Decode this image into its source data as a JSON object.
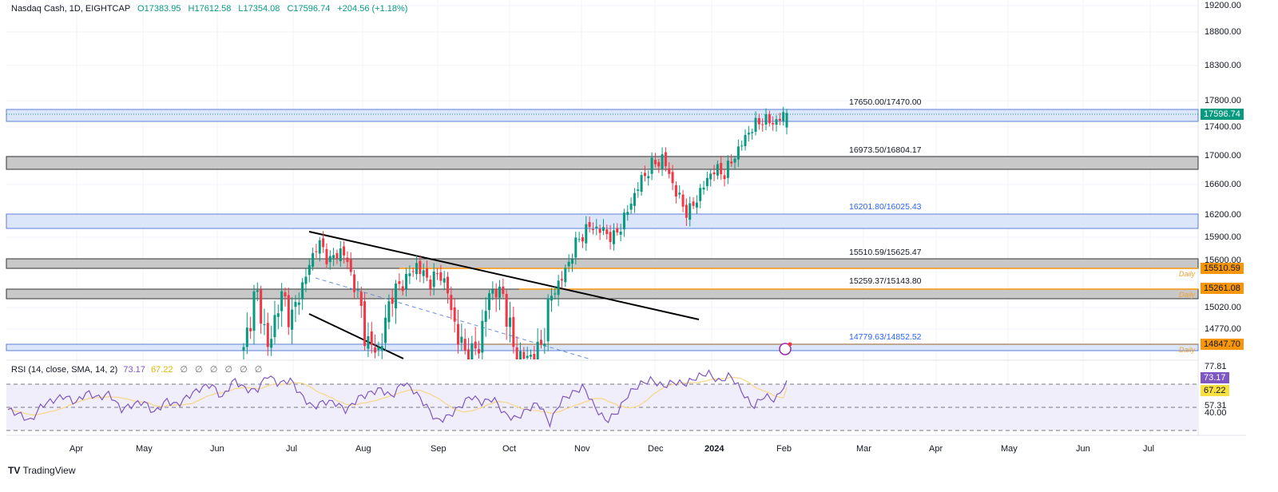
{
  "header": {
    "symbol": "Nasdaq Cash, 1D, EIGHTCAP",
    "open": "O17383.95",
    "high": "H17612.58",
    "low": "L17354.08",
    "close": "C17596.74",
    "change": "+204.56 (+1.18%)"
  },
  "rsi_legend": {
    "name": "RSI (14, close, SMA, 14, 2)",
    "value": "73.17",
    "sma": "67.22",
    "placeholders": "∅ ∅ ∅ ∅ ∅ ∅"
  },
  "price_axis": [
    "19200.00",
    "18800.00",
    "18300.00",
    "17800.00",
    "17400.00",
    "17000.00",
    "16600.00",
    "16200.00",
    "15900.00",
    "15600.00",
    "15020.00",
    "14770.00"
  ],
  "rsi_axis": [
    "77.81",
    "57.31",
    "40.00"
  ],
  "tags": {
    "last_price": "17596.74",
    "rsi": "73.17",
    "rsi_sma": "67.22",
    "alerts": [
      "15510.59",
      "15261.08",
      "14847.70"
    ],
    "daily": "Daily"
  },
  "zones": [
    {
      "label": "17650.00/17470.00",
      "type": "blue"
    },
    {
      "label": "16973.50/16804.17",
      "type": "grey"
    },
    {
      "label": "16201.80/16025.43",
      "type": "blue"
    },
    {
      "label": "15510.59/15625.47",
      "type": "grey"
    },
    {
      "label": "15259.37/15143.80",
      "type": "grey"
    },
    {
      "label": "14779.63/14852.52",
      "type": "blue"
    }
  ],
  "time_axis": [
    "Apr",
    "May",
    "Jun",
    "Jul",
    "Aug",
    "Sep",
    "Oct",
    "Nov",
    "Dec",
    "2024",
    "Feb",
    "Mar",
    "Apr",
    "May",
    "Jun",
    "Jul"
  ],
  "colors": {
    "up": "#089981",
    "down": "#f23645",
    "rsi": "#7e57c2",
    "sma": "#f5d78e",
    "zone_blue": "#dce6fb",
    "zone_grey": "#c8c8c8",
    "alert": "#f7950b"
  },
  "price_keypoints": [
    [
      14780,
      14700
    ],
    [
      15250,
      14850
    ],
    [
      14800,
      14760
    ],
    [
      15200,
      15050
    ],
    [
      15000,
      14950
    ],
    [
      15400,
      15250
    ],
    [
      15850,
      15700
    ],
    [
      15600,
      15500
    ],
    [
      15750,
      15700
    ],
    [
      15300,
      15200
    ],
    [
      14850,
      14800
    ],
    [
      14780,
      14770
    ],
    [
      15200,
      15100
    ],
    [
      15350,
      15300
    ],
    [
      15550,
      15500
    ],
    [
      15350,
      15300
    ],
    [
      15450,
      15400
    ],
    [
      15000,
      14950
    ],
    [
      14750,
      14700
    ],
    [
      14800,
      14760
    ],
    [
      15250,
      15150
    ],
    [
      15200,
      15150
    ],
    [
      14750,
      14720
    ],
    [
      14700,
      14690
    ],
    [
      14800,
      14780
    ],
    [
      15200,
      15100
    ],
    [
      15450,
      15400
    ],
    [
      15850,
      15800
    ],
    [
      16050,
      16000
    ],
    [
      16000,
      15950
    ],
    [
      15900,
      15850
    ],
    [
      16200,
      16150
    ],
    [
      16600,
      16550
    ],
    [
      16850,
      16800
    ],
    [
      16950,
      16900
    ],
    [
      16500,
      16400
    ],
    [
      16200,
      16150
    ],
    [
      16500,
      16450
    ],
    [
      16800,
      16750
    ],
    [
      16750,
      16600
    ],
    [
      17050,
      17000
    ],
    [
      17350,
      17300
    ],
    [
      17500,
      17450
    ],
    [
      17450,
      17380
    ],
    [
      17596.74,
      17596.74
    ]
  ],
  "rsi_keypoints": [
    48,
    44,
    38,
    52,
    56,
    60,
    54,
    63,
    58,
    62,
    48,
    52,
    55,
    45,
    56,
    52,
    60,
    66,
    70,
    58,
    74,
    66,
    64,
    78,
    70,
    74,
    60,
    50,
    55,
    54,
    47,
    58,
    62,
    66,
    59,
    72,
    64,
    52,
    38,
    42,
    50,
    60,
    54,
    58,
    44,
    40,
    48,
    54,
    36,
    56,
    62,
    68,
    50,
    38,
    46,
    62,
    70,
    74,
    68,
    72,
    70,
    76,
    80,
    72,
    78,
    64,
    50,
    60,
    56,
    73.17
  ]
}
